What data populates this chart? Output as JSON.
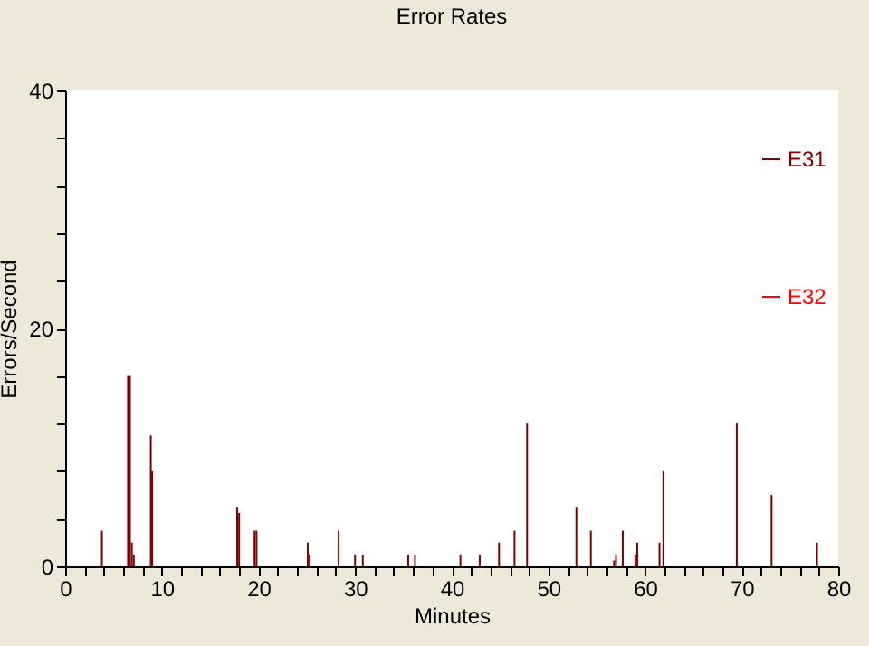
{
  "chart_data": {
    "type": "bar",
    "title": "Error Rates",
    "xlabel": "Minutes",
    "ylabel": "Errors/Second",
    "x": [
      3.8,
      6.5,
      6.7,
      6.9,
      7.1,
      8.86,
      9.0,
      17.8,
      18.0,
      19.6,
      19.8,
      25.1,
      25.3,
      28.3,
      30.0,
      30.8,
      35.5,
      36.2,
      40.9,
      42.9,
      44.9,
      46.5,
      47.8,
      52.9,
      54.4,
      56.8,
      57.0,
      57.7,
      59.0,
      59.2,
      61.5,
      61.9,
      69.5,
      73.1,
      77.8
    ],
    "series": [
      {
        "name": "E31",
        "color": "#800000",
        "values": [
          3,
          16,
          16,
          2,
          1,
          11,
          8,
          5,
          4.5,
          3,
          3,
          2,
          1,
          3,
          1,
          1,
          1,
          1,
          1,
          1,
          2,
          3,
          12,
          5,
          3,
          0.5,
          1,
          3,
          1,
          2,
          2,
          8,
          12,
          6,
          2
        ]
      },
      {
        "name": "E32",
        "color": "#ff0000",
        "values": [
          null,
          null,
          null,
          null,
          null,
          null,
          null,
          null,
          null,
          null,
          null,
          null,
          null,
          null,
          null,
          null,
          null,
          null,
          null,
          null,
          null,
          null,
          null,
          null,
          null,
          null,
          null,
          null,
          null,
          null,
          null,
          null,
          null,
          null,
          null
        ]
      }
    ],
    "xlim": [
      0,
      80
    ],
    "xticks": [
      0,
      {
        "value": 2,
        "label": null
      },
      {
        "value": 4,
        "label": null
      },
      {
        "value": 6,
        "label": null
      },
      {
        "value": 8,
        "label": null
      },
      10,
      {
        "value": 12,
        "label": null
      },
      {
        "value": 14,
        "label": null
      },
      {
        "value": 16,
        "label": null
      },
      {
        "value": 18,
        "label": null
      },
      20,
      {
        "value": 22,
        "label": null
      },
      {
        "value": 24,
        "label": null
      },
      {
        "value": 26,
        "label": null
      },
      {
        "value": 28,
        "label": null
      },
      30,
      {
        "value": 32,
        "label": null
      },
      {
        "value": 34,
        "label": null
      },
      {
        "value": 36,
        "label": null
      },
      {
        "value": 38,
        "label": null
      },
      40,
      {
        "value": 42,
        "label": null
      },
      {
        "value": 44,
        "label": null
      },
      {
        "value": 46,
        "label": null
      },
      {
        "value": 48,
        "label": null
      },
      50,
      {
        "value": 52,
        "label": null
      },
      {
        "value": 54,
        "label": null
      },
      {
        "value": 56,
        "label": null
      },
      {
        "value": 58,
        "label": null
      },
      60,
      {
        "value": 62,
        "label": null
      },
      {
        "value": 64,
        "label": null
      },
      {
        "value": 66,
        "label": null
      },
      {
        "value": 68,
        "label": null
      },
      70,
      {
        "value": 72,
        "label": null
      },
      {
        "value": 74,
        "label": null
      },
      {
        "value": 76,
        "label": null
      },
      {
        "value": 78,
        "label": null
      },
      80
    ],
    "ylim": [
      0,
      40
    ],
    "yticks": [
      0,
      {
        "value": 4,
        "label": null
      },
      {
        "value": 8,
        "label": null
      },
      {
        "value": 12,
        "label": null
      },
      {
        "value": 16,
        "label": null
      },
      20,
      {
        "value": 24,
        "label": null
      },
      {
        "value": 28,
        "label": null
      },
      {
        "value": 32,
        "label": null
      },
      {
        "value": 36,
        "label": null
      },
      40
    ],
    "grid": false,
    "legend": "top right"
  }
}
